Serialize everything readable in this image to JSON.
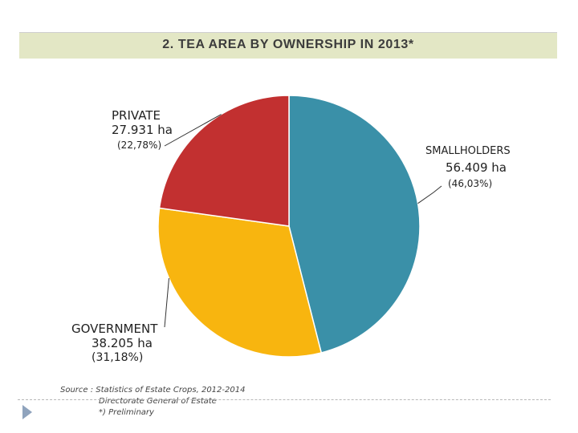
{
  "title": "2. TEA AREA BY OWNERSHIP IN 2013*",
  "chart_data": {
    "type": "pie",
    "title": "2. TEA AREA BY OWNERSHIP IN 2013*",
    "slices": [
      {
        "name": "SMALLHOLDERS",
        "value_label": "56.409 ha",
        "value": 56409,
        "percent_label": "(46,03%)",
        "percent": 46.03,
        "color": "#3a90a8"
      },
      {
        "name": "GOVERNMENT",
        "value_label": "38.205 ha",
        "value": 38205,
        "percent_label": "(31,18%)",
        "percent": 31.18,
        "color": "#f8b50f"
      },
      {
        "name": "PRIVATE",
        "value_label": "27.931 ha",
        "value": 27931,
        "percent_label": "(22,78%)",
        "percent": 22.78,
        "color": "#c23030"
      }
    ],
    "start_angle_deg": 0,
    "direction": "clockwise"
  },
  "source": {
    "line1": "Source :  Statistics of Estate Crops, 2012-2014",
    "line2": "Directorate General of Estate",
    "line3": "*) Preliminary"
  }
}
